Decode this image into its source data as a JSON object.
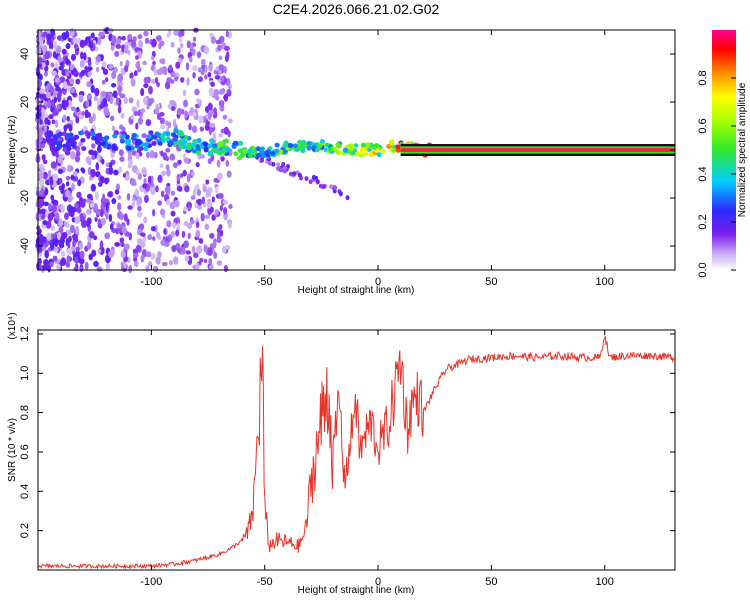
{
  "title": "C2E4.2026.066.21.02.G02",
  "chart_data": [
    {
      "type": "heatmap",
      "xlabel": "Height of straight line (km)",
      "ylabel": "Frequency (Hz)",
      "xlim": [
        -150,
        131
      ],
      "ylim": [
        -50,
        50
      ],
      "xticks": [
        -100,
        -50,
        0,
        50,
        100
      ],
      "yticks": [
        -40,
        -20,
        0,
        20,
        40
      ],
      "colorbar": {
        "label": "Normalized spectral amplitude",
        "range": [
          0,
          1
        ],
        "ticks": [
          "0.0",
          "0.2",
          "0.4",
          "0.6",
          "0.8"
        ]
      },
      "ridge": {
        "description": "frequency trace of the occulted signal",
        "x": [
          -145,
          -130,
          -115,
          -100,
          -90,
          -80,
          -70,
          -60,
          -50,
          -40,
          -30,
          -20,
          -10,
          0,
          5,
          10,
          20,
          50,
          100,
          131
        ],
        "freq_center": [
          3,
          4,
          3,
          4,
          5,
          2,
          1,
          0,
          -1,
          1,
          2,
          1,
          0,
          0,
          2,
          1,
          0,
          0,
          0,
          0
        ],
        "amplitude": [
          0.25,
          0.3,
          0.35,
          0.4,
          0.45,
          0.5,
          0.55,
          0.55,
          0.5,
          0.6,
          0.55,
          0.65,
          0.75,
          0.8,
          0.9,
          0.9,
          0.95,
          0.95,
          0.95,
          0.95
        ]
      },
      "grid": false
    },
    {
      "type": "line",
      "xlabel": "Height of straight line (km)",
      "ylabel": "SNR (10 * v/v)",
      "scale_label": "(x10⁴)",
      "xlim": [
        -150,
        131
      ],
      "ylim": [
        0,
        1.22
      ],
      "xticks": [
        -100,
        -50,
        0,
        50,
        100
      ],
      "yticks": [
        "0.2",
        "0.4",
        "0.6",
        "0.8",
        "1.0",
        "1.2"
      ],
      "grid": false,
      "series": [
        {
          "name": "SNR",
          "color": "#e8332a",
          "x": [
            -150,
            -120,
            -100,
            -90,
            -80,
            -70,
            -65,
            -60,
            -57,
            -55,
            -53,
            -51,
            -50,
            -48,
            -45,
            -40,
            -35,
            -32,
            -30,
            -28,
            -25,
            -22,
            -20,
            -17,
            -15,
            -12,
            -10,
            -8,
            -5,
            -3,
            0,
            5,
            10,
            13,
            15,
            18,
            20,
            25,
            30,
            40,
            50,
            60,
            70,
            80,
            90,
            98,
            100,
            102,
            110,
            120,
            131
          ],
          "values": [
            0.02,
            0.02,
            0.02,
            0.03,
            0.05,
            0.08,
            0.11,
            0.15,
            0.2,
            0.32,
            0.7,
            1.1,
            0.3,
            0.12,
            0.15,
            0.14,
            0.12,
            0.2,
            0.4,
            0.55,
            0.75,
            0.95,
            0.55,
            0.88,
            0.45,
            0.65,
            0.9,
            0.6,
            0.7,
            0.75,
            0.62,
            0.75,
            1.08,
            0.7,
            0.85,
            0.88,
            0.8,
            0.92,
            1.02,
            1.07,
            1.08,
            1.09,
            1.08,
            1.09,
            1.08,
            1.08,
            1.2,
            1.08,
            1.09,
            1.09,
            1.08
          ]
        }
      ]
    }
  ]
}
